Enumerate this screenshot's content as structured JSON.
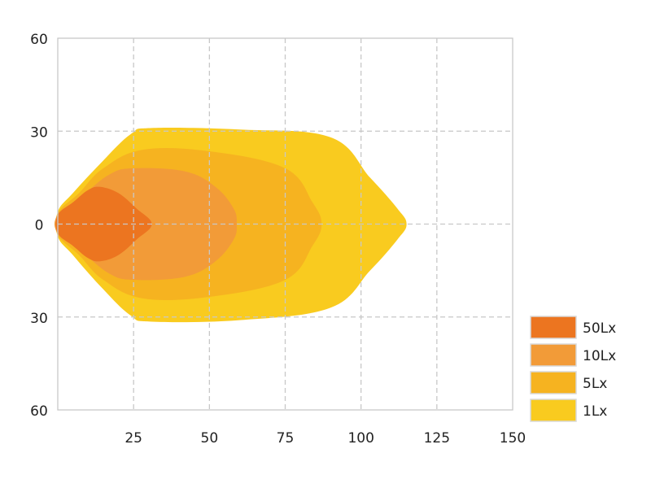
{
  "chart_data": {
    "type": "area",
    "title": "",
    "xlabel": "",
    "ylabel": "",
    "xlim": [
      0,
      150
    ],
    "ylim": [
      -60,
      60
    ],
    "grid": true,
    "legend_position": "bottom-right",
    "x_ticks": [
      {
        "value": 25,
        "label": "25"
      },
      {
        "value": 50,
        "label": "50"
      },
      {
        "value": 75,
        "label": "75"
      },
      {
        "value": 100,
        "label": "100"
      },
      {
        "value": 125,
        "label": "125"
      },
      {
        "value": 150,
        "label": "150"
      }
    ],
    "y_ticks": [
      {
        "value": 60,
        "label": "60"
      },
      {
        "value": 30,
        "label": "30"
      },
      {
        "value": 0,
        "label": "0"
      },
      {
        "value": -30,
        "label": "30"
      },
      {
        "value": -60,
        "label": "60"
      }
    ],
    "series": [
      {
        "name": "1Lx",
        "color": "#f9cb1f",
        "points": [
          [
            0,
            -4
          ],
          [
            5,
            -10
          ],
          [
            14,
            -20
          ],
          [
            24,
            -29.5
          ],
          [
            31,
            -31.5
          ],
          [
            60,
            -31
          ],
          [
            90,
            -27
          ],
          [
            103,
            -15
          ],
          [
            112,
            -5
          ],
          [
            115,
            0
          ],
          [
            112,
            5
          ],
          [
            103,
            15
          ],
          [
            90,
            28
          ],
          [
            60,
            30.5
          ],
          [
            31,
            31
          ],
          [
            24,
            29
          ],
          [
            14,
            19.5
          ],
          [
            5,
            10
          ],
          [
            0,
            4
          ]
        ]
      },
      {
        "name": "5Lx",
        "color": "#f6b320",
        "points": [
          [
            0,
            -3.5
          ],
          [
            7,
            -10
          ],
          [
            15,
            -18
          ],
          [
            28,
            -24
          ],
          [
            50,
            -23.5
          ],
          [
            75,
            -18
          ],
          [
            84,
            -7
          ],
          [
            87,
            0
          ],
          [
            84,
            7
          ],
          [
            75,
            18
          ],
          [
            50,
            23.5
          ],
          [
            28,
            24
          ],
          [
            15,
            18
          ],
          [
            7,
            10
          ],
          [
            0,
            3.5
          ]
        ]
      },
      {
        "name": "10Lx",
        "color": "#f29b38",
        "points": [
          [
            0,
            -3
          ],
          [
            8,
            -9
          ],
          [
            17,
            -16
          ],
          [
            25,
            -18
          ],
          [
            42,
            -17
          ],
          [
            52,
            -12
          ],
          [
            58,
            -5
          ],
          [
            59,
            0
          ],
          [
            58,
            5
          ],
          [
            52,
            12
          ],
          [
            42,
            17
          ],
          [
            25,
            18
          ],
          [
            17,
            16
          ],
          [
            8,
            9
          ],
          [
            0,
            3
          ]
        ]
      },
      {
        "name": "50Lx",
        "color": "#ec7520",
        "points": [
          [
            0,
            -3
          ],
          [
            5,
            -7
          ],
          [
            10,
            -11
          ],
          [
            14,
            -12
          ],
          [
            20,
            -10
          ],
          [
            26,
            -5
          ],
          [
            31,
            0
          ],
          [
            26,
            5
          ],
          [
            20,
            10
          ],
          [
            14,
            12
          ],
          [
            10,
            11
          ],
          [
            5,
            7
          ],
          [
            0,
            3
          ]
        ]
      }
    ],
    "legend": [
      {
        "label": "50Lx",
        "color": "#ec7520"
      },
      {
        "label": "10Lx",
        "color": "#f29b38"
      },
      {
        "label": "5Lx",
        "color": "#f6b320"
      },
      {
        "label": "1Lx",
        "color": "#f9cb1f"
      }
    ]
  }
}
